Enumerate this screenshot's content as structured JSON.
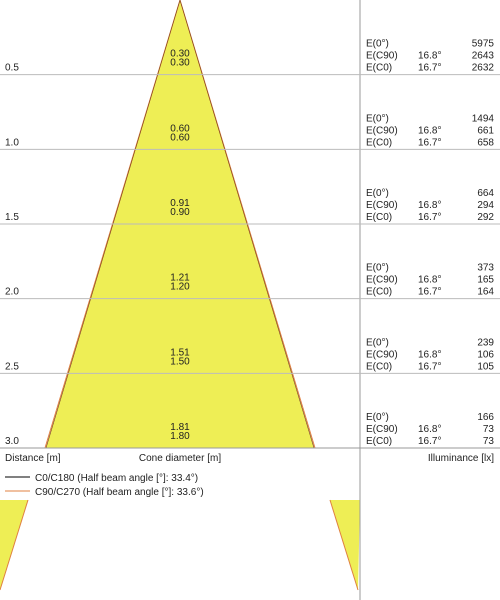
{
  "rows": [
    {
      "distance": "0.5",
      "diameters": [
        "0.30",
        "0.30"
      ],
      "labels": [
        "E(0°)",
        "E(C90)",
        "E(C0)"
      ],
      "angles": [
        "16.8°",
        "16.7°"
      ],
      "values": [
        "5975",
        "2643",
        "2632"
      ]
    },
    {
      "distance": "1.0",
      "diameters": [
        "0.60",
        "0.60"
      ],
      "labels": [
        "E(0°)",
        "E(C90)",
        "E(C0)"
      ],
      "angles": [
        "16.8°",
        "16.7°"
      ],
      "values": [
        "1494",
        "661",
        "658"
      ]
    },
    {
      "distance": "1.5",
      "diameters": [
        "0.91",
        "0.90"
      ],
      "labels": [
        "E(0°)",
        "E(C90)",
        "E(C0)"
      ],
      "angles": [
        "16.8°",
        "16.7°"
      ],
      "values": [
        "664",
        "294",
        "292"
      ]
    },
    {
      "distance": "2.0",
      "diameters": [
        "1.21",
        "1.20"
      ],
      "labels": [
        "E(0°)",
        "E(C90)",
        "E(C0)"
      ],
      "angles": [
        "16.8°",
        "16.7°"
      ],
      "values": [
        "373",
        "165",
        "164"
      ]
    },
    {
      "distance": "2.5",
      "diameters": [
        "1.51",
        "1.50"
      ],
      "labels": [
        "E(0°)",
        "E(C90)",
        "E(C0)"
      ],
      "angles": [
        "16.8°",
        "16.7°"
      ],
      "values": [
        "239",
        "106",
        "105"
      ]
    },
    {
      "distance": "3.0",
      "diameters": [
        "1.81",
        "1.80"
      ],
      "labels": [
        "E(0°)",
        "E(C90)",
        "E(C0)"
      ],
      "angles": [
        "16.8°",
        "16.7°"
      ],
      "values": [
        "166",
        "73",
        "73"
      ]
    }
  ],
  "footer": {
    "distance": "Distance [m]",
    "diameter": "Cone diameter [m]",
    "illuminance": "Illuminance [lx]"
  },
  "legend": [
    "C0/C180 (Half beam angle [°]: 33.4°)",
    "C90/C270 (Half beam angle [°]: 33.6°)"
  ]
}
